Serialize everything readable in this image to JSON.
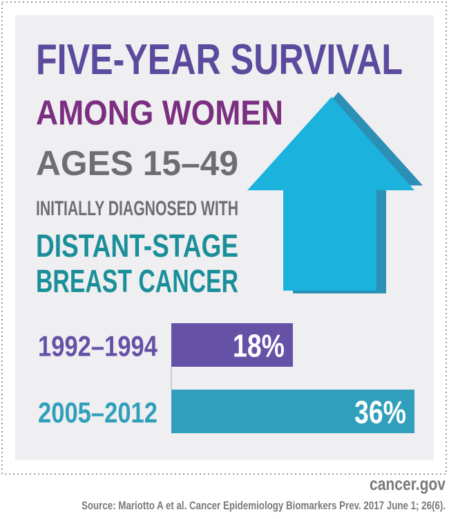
{
  "chart_data": {
    "type": "bar",
    "orientation": "horizontal",
    "title_lines": [
      "FIVE-YEAR SURVIVAL",
      "AMONG WOMEN",
      "AGES 15–49",
      "INITIALLY DIAGNOSED WITH",
      "DISTANT-STAGE",
      "BREAST CANCER"
    ],
    "categories": [
      "1992–1994",
      "2005–2012"
    ],
    "values": [
      18,
      36
    ],
    "value_labels": [
      "18%",
      "36%"
    ],
    "colors": [
      "#6551a6",
      "#2f9fbc"
    ],
    "xlim": [
      0,
      36
    ]
  },
  "footer": {
    "site": "cancer.gov",
    "source": "Source: Mariotto A et al. Cancer Epidemiology Biomarkers Prev. 2017 June 1; 26(6)."
  }
}
